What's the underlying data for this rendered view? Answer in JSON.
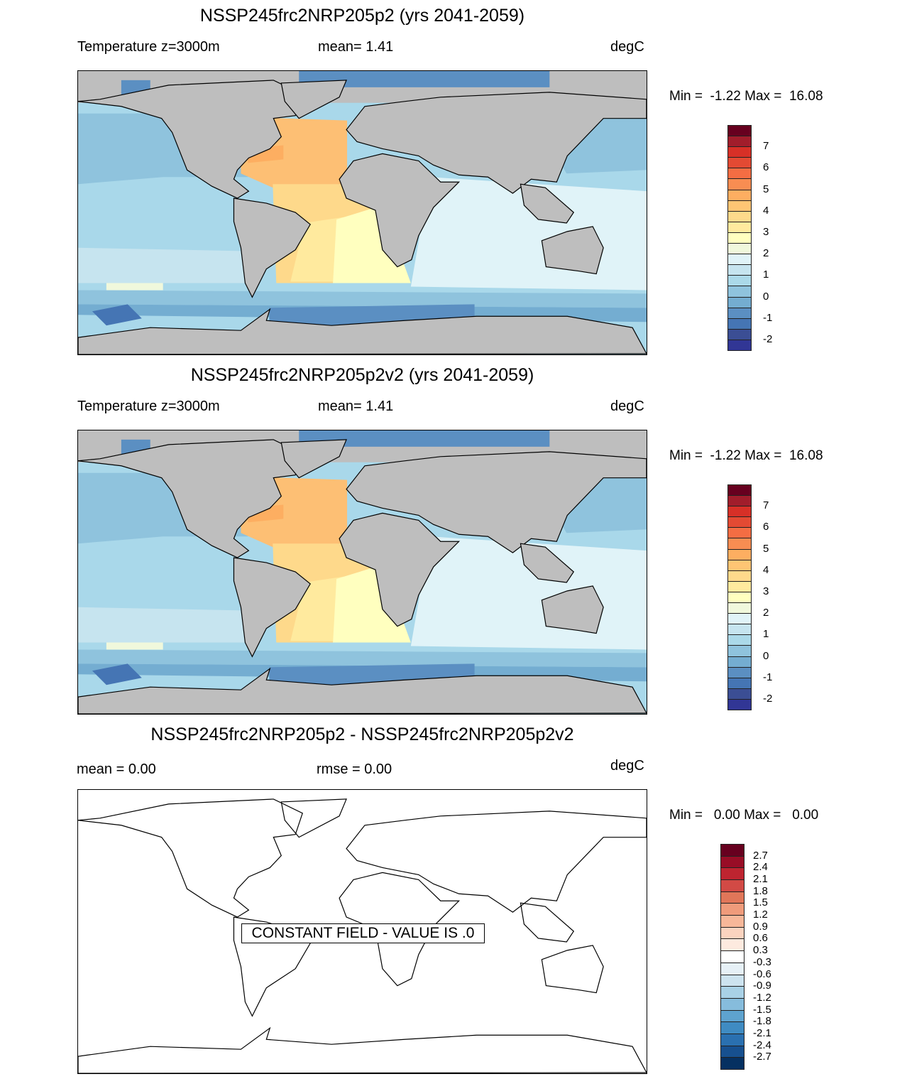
{
  "panels": [
    {
      "title": "NSSP245frc2NRP205p2 (yrs 2041-2059)",
      "sub_left": "Temperature z=3000m",
      "sub_mid": "mean=   1.41",
      "sub_right": "degC",
      "minmax": "Min =  -1.22 Max =  16.08",
      "map_style": "filled"
    },
    {
      "title": "NSSP245frc2NRP205p2v2 (yrs 2041-2059)",
      "sub_left": "Temperature z=3000m",
      "sub_mid": "mean=   1.41",
      "sub_right": "degC",
      "minmax": "Min =  -1.22 Max =  16.08",
      "map_style": "filled"
    },
    {
      "title": "NSSP245frc2NRP205p2 - NSSP245frc2NRP205p2v2",
      "sub_left": "mean =   0.00",
      "sub_mid": "rmse =   0.00",
      "sub_right": "degC",
      "minmax": "Min =   0.00 Max =   0.00",
      "map_style": "empty",
      "constant_field_label": "CONSTANT FIELD - VALUE IS .0"
    }
  ],
  "temp_colorbar": {
    "labels": [
      "7",
      "6",
      "5",
      "4",
      "3",
      "2",
      "1",
      "0",
      "-1",
      "-2"
    ],
    "colors": [
      "#67001f",
      "#a11d2b",
      "#d73027",
      "#e34a33",
      "#f46d43",
      "#f88d52",
      "#fdae61",
      "#fec574",
      "#fed98b",
      "#ffea9e",
      "#ffffbf",
      "#f0f8dc",
      "#e0f3f8",
      "#c6e4ef",
      "#abd9e9",
      "#8fc3dd",
      "#74add1",
      "#5b8fc2",
      "#4575b4",
      "#3b4e94",
      "#313695"
    ]
  },
  "diff_colorbar": {
    "labels": [
      "2.7",
      "2.4",
      "2.1",
      "1.8",
      "1.5",
      "1.2",
      "0.9",
      "0.6",
      "0.3",
      "-0.3",
      "-0.6",
      "-0.9",
      "-1.2",
      "-1.5",
      "-1.8",
      "-2.1",
      "-2.4",
      "-2.7"
    ],
    "colors": [
      "#67001f",
      "#980d26",
      "#be2430",
      "#d24a45",
      "#e07659",
      "#ef9b7b",
      "#f7b799",
      "#fbd3bf",
      "#fdeadf",
      "#ffffff",
      "#e6f0f6",
      "#cde3ef",
      "#a9d1e6",
      "#86bcdc",
      "#5ea3cf",
      "#3f8bc2",
      "#2a70b0",
      "#17508f",
      "#053061"
    ]
  }
}
